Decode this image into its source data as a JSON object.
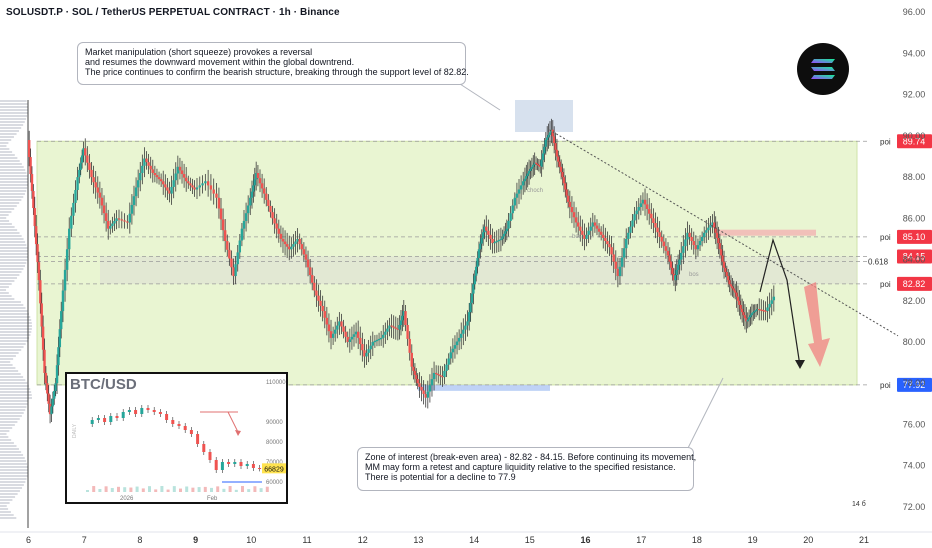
{
  "header": {
    "title": "SOLUSDT.P · SOL / TetherUS PERPETUAL CONTRACT · 1h · Binance"
  },
  "notes": {
    "top": [
      "Market manipulation (short squeeze) provokes a reversal",
      "and resumes the downward movement within the global downtrend.",
      "The price continues to confirm the bearish structure, breaking through the support level of 82.82."
    ],
    "bottom": [
      "Zone of interest (break-even area) - 82.82 - 84.15. Before continuing its movement,",
      "MM may form a retest and capture liquidity relative to the specified resistance.",
      "There is potential for a decline to 77.9"
    ]
  },
  "logo": {
    "icon": "solana-logo-icon"
  },
  "colors": {
    "up": "#26a69a",
    "down": "#ef5350",
    "candle": "#3a3a3a",
    "zone_fill": "#e9f5d2",
    "zone_border": "#cfe3a8",
    "poi_red": "#f23645",
    "poi_blue": "#2962ff",
    "arrow_red": "#f08080"
  },
  "chart_data": [
    {
      "type": "line",
      "title": "SOLUSDT.P · SOL / TetherUS PERPETUAL CONTRACT · 1h · Binance",
      "x_ticks": [
        "6",
        "7",
        "8",
        "9",
        "10",
        "11",
        "12",
        "13",
        "14",
        "15",
        "16",
        "17",
        "18",
        "19",
        "20",
        "21"
      ],
      "y_ticks": [
        72.0,
        74.0,
        76.0,
        78.0,
        80.0,
        82.0,
        84.0,
        86.0,
        88.0,
        90.0,
        92.0,
        94.0,
        96.0
      ],
      "ylim": [
        70.2,
        96.4
      ],
      "xlim": [
        5.9,
        21.5
      ],
      "series": [
        {
          "values": [
            [
              6.0,
              89.8
            ],
            [
              6.1,
              86.5
            ],
            [
              6.2,
              83.0
            ],
            [
              6.3,
              78.5
            ],
            [
              6.4,
              76.5
            ],
            [
              6.5,
              78.0
            ],
            [
              6.6,
              81.5
            ],
            [
              6.75,
              85.5
            ],
            [
              6.9,
              88.0
            ],
            [
              7.0,
              89.4
            ],
            [
              7.15,
              88.0
            ],
            [
              7.3,
              87.0
            ],
            [
              7.45,
              85.5
            ],
            [
              7.6,
              86.0
            ],
            [
              7.8,
              85.8
            ],
            [
              7.95,
              87.5
            ],
            [
              8.1,
              88.9
            ],
            [
              8.25,
              88.2
            ],
            [
              8.4,
              87.8
            ],
            [
              8.55,
              87.2
            ],
            [
              8.7,
              88.5
            ],
            [
              8.85,
              87.8
            ],
            [
              9.0,
              87.4
            ],
            [
              9.2,
              87.8
            ],
            [
              9.4,
              87.0
            ],
            [
              9.55,
              84.9
            ],
            [
              9.7,
              83.2
            ],
            [
              9.85,
              85.5
            ],
            [
              10.0,
              87.0
            ],
            [
              10.1,
              88.2
            ],
            [
              10.25,
              87.2
            ],
            [
              10.4,
              86.0
            ],
            [
              10.55,
              85.0
            ],
            [
              10.7,
              84.5
            ],
            [
              10.85,
              85.0
            ],
            [
              11.0,
              84.0
            ],
            [
              11.15,
              82.5
            ],
            [
              11.3,
              81.5
            ],
            [
              11.45,
              80.2
            ],
            [
              11.6,
              81.0
            ],
            [
              11.75,
              80.0
            ],
            [
              11.9,
              80.5
            ],
            [
              12.05,
              79.3
            ],
            [
              12.2,
              80.0
            ],
            [
              12.35,
              80.2
            ],
            [
              12.5,
              80.8
            ],
            [
              12.65,
              80.6
            ],
            [
              12.75,
              81.5
            ],
            [
              12.9,
              78.8
            ],
            [
              13.0,
              78.0
            ],
            [
              13.15,
              77.3
            ],
            [
              13.3,
              78.5
            ],
            [
              13.45,
              78.3
            ],
            [
              13.6,
              79.5
            ],
            [
              13.75,
              80.2
            ],
            [
              13.9,
              81.0
            ],
            [
              14.0,
              82.8
            ],
            [
              14.1,
              84.5
            ],
            [
              14.2,
              85.6
            ],
            [
              14.35,
              84.8
            ],
            [
              14.5,
              85.0
            ],
            [
              14.6,
              85.5
            ],
            [
              14.75,
              87.0
            ],
            [
              14.9,
              87.8
            ],
            [
              15.0,
              88.3
            ],
            [
              15.1,
              88.7
            ],
            [
              15.2,
              88.5
            ],
            [
              15.3,
              89.8
            ],
            [
              15.4,
              90.3
            ],
            [
              15.5,
              89.0
            ],
            [
              15.6,
              88.0
            ],
            [
              15.7,
              86.8
            ],
            [
              15.85,
              85.8
            ],
            [
              16.0,
              85.0
            ],
            [
              16.15,
              85.8
            ],
            [
              16.3,
              85.2
            ],
            [
              16.45,
              84.6
            ],
            [
              16.6,
              83.2
            ],
            [
              16.75,
              85.0
            ],
            [
              16.9,
              86.2
            ],
            [
              17.05,
              86.9
            ],
            [
              17.2,
              86.0
            ],
            [
              17.35,
              85.1
            ],
            [
              17.5,
              84.2
            ],
            [
              17.6,
              83.0
            ],
            [
              17.7,
              84.0
            ],
            [
              17.85,
              85.3
            ],
            [
              18.0,
              84.5
            ],
            [
              18.15,
              85.3
            ],
            [
              18.3,
              85.8
            ],
            [
              18.4,
              84.8
            ],
            [
              18.5,
              83.6
            ],
            [
              18.6,
              82.8
            ],
            [
              18.7,
              82.4
            ],
            [
              18.8,
              81.6
            ],
            [
              18.9,
              81.0
            ],
            [
              19.0,
              81.4
            ],
            [
              19.1,
              81.6
            ],
            [
              19.25,
              81.5
            ],
            [
              19.4,
              82.2
            ]
          ]
        }
      ],
      "levels": [
        {
          "label": "poi",
          "value": 89.74,
          "color": "red"
        },
        {
          "label": "poi",
          "value": 85.1,
          "color": "red"
        },
        {
          "value": 84.15,
          "color": "red"
        },
        {
          "label": "0.618",
          "value": 83.9,
          "color": "gray"
        },
        {
          "label": "poi",
          "value": 82.82,
          "color": "red"
        },
        {
          "label": "poi",
          "value": 77.92,
          "color": "blue"
        }
      ],
      "annotations": [
        "choch",
        "bos",
        "bos"
      ],
      "bottom_mark": "14 б"
    },
    {
      "type": "line",
      "title": "BTC/USD",
      "x_ticks": [
        "2026",
        "Feb"
      ],
      "y_ticks": [
        110000.0,
        90000.0,
        80000.0,
        70000.0,
        60000.0
      ],
      "side_label": "DAILY",
      "last_price": "66829",
      "values": [
        [
          0,
          89000
        ],
        [
          1,
          91000
        ],
        [
          2,
          92000
        ],
        [
          3,
          90000
        ],
        [
          4,
          93000
        ],
        [
          5,
          92000
        ],
        [
          6,
          95000
        ],
        [
          7,
          96000
        ],
        [
          8,
          94000
        ],
        [
          9,
          97000
        ],
        [
          10,
          96000
        ],
        [
          11,
          95000
        ],
        [
          12,
          94000
        ],
        [
          13,
          91000
        ],
        [
          14,
          89000
        ],
        [
          15,
          88000
        ],
        [
          16,
          86000
        ],
        [
          17,
          84000
        ],
        [
          18,
          79000
        ],
        [
          19,
          75000
        ],
        [
          20,
          71000
        ],
        [
          21,
          66000
        ],
        [
          22,
          70000
        ],
        [
          23,
          69000
        ],
        [
          24,
          70000
        ],
        [
          25,
          68000
        ],
        [
          26,
          69000
        ],
        [
          27,
          67000
        ],
        [
          28,
          66829
        ]
      ]
    }
  ]
}
